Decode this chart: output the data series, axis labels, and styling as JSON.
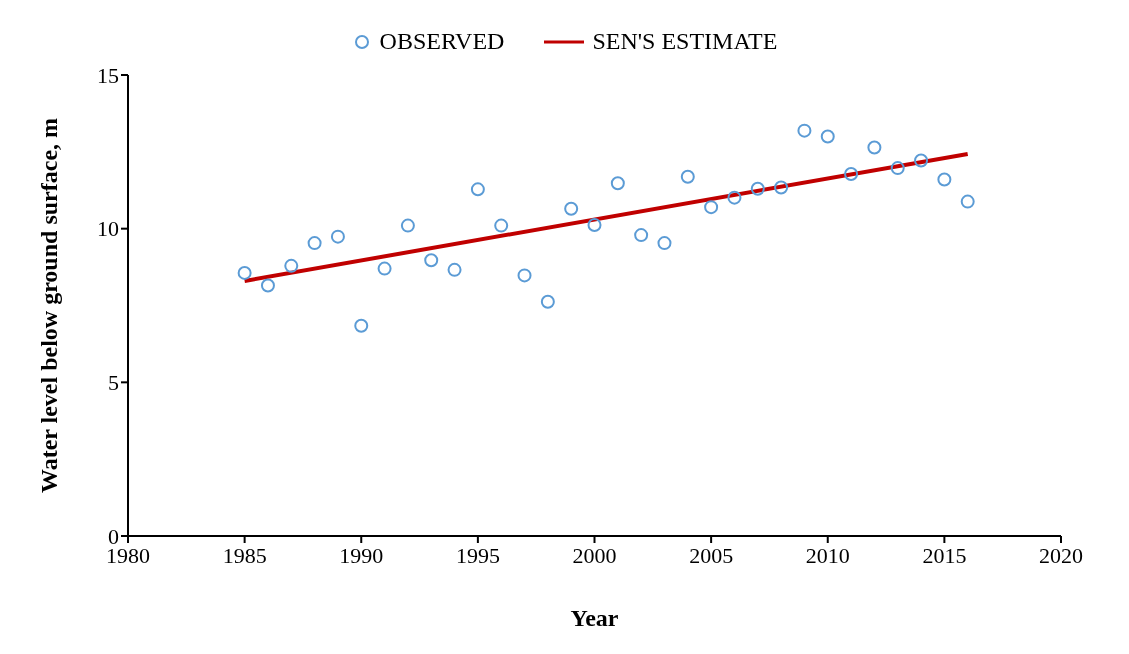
{
  "chart_data": {
    "type": "scatter",
    "xlabel": "Year",
    "ylabel": "Water level below ground surface, m",
    "xlim": [
      1980,
      2020
    ],
    "xticks": [
      1980,
      1985,
      1990,
      1995,
      2000,
      2005,
      2010,
      2015,
      2020
    ],
    "ylim": [
      0,
      15
    ],
    "yticks": [
      0,
      5,
      10,
      15
    ],
    "grid": false,
    "legend": "top",
    "series": [
      {
        "name": "OBSERVED",
        "marker": "circle",
        "color": "#5b9bd5",
        "x": [
          1985,
          1986,
          1987,
          1988,
          1989,
          1990,
          1991,
          1992,
          1993,
          1994,
          1995,
          1996,
          1997,
          1998,
          1999,
          2000,
          2001,
          2002,
          2003,
          2004,
          2005,
          2006,
          2007,
          2008,
          2009,
          2010,
          2011,
          2012,
          2013,
          2014,
          2015,
          2016
        ],
        "values": [
          8.56,
          8.15,
          8.79,
          9.53,
          9.74,
          6.84,
          8.7,
          10.1,
          8.97,
          8.66,
          11.28,
          10.1,
          8.48,
          7.62,
          10.65,
          10.12,
          11.48,
          9.79,
          9.53,
          11.69,
          10.7,
          11.01,
          11.3,
          11.34,
          13.19,
          13.0,
          11.78,
          12.64,
          11.97,
          12.22,
          11.6,
          10.88
        ]
      },
      {
        "name": "SEN'S ESTIMATE",
        "type": "line",
        "marker": "none",
        "line_style": "solid",
        "color": "#c00000",
        "x": [
          1985,
          2016
        ],
        "values": [
          8.3,
          12.43
        ]
      }
    ]
  }
}
